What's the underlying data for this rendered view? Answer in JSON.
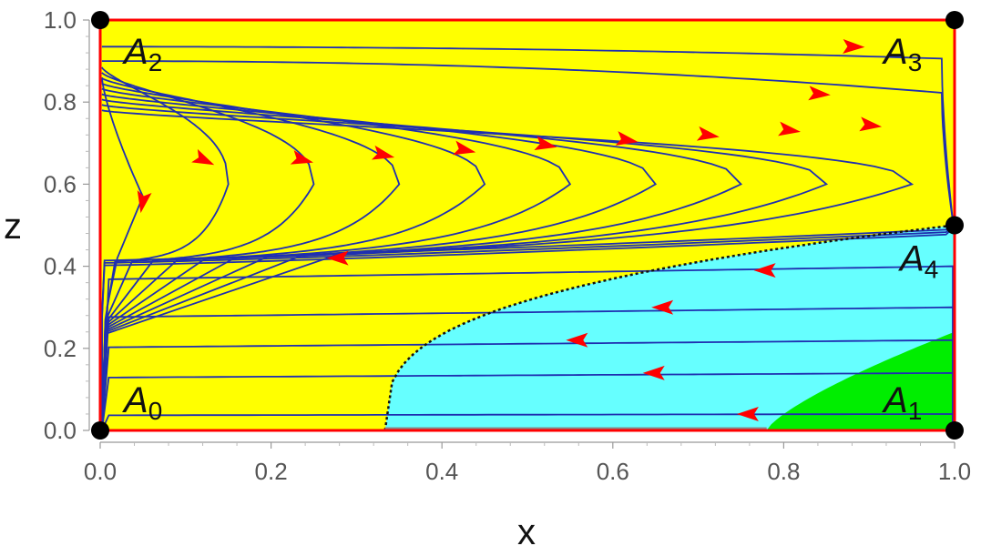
{
  "chart_data": {
    "type": "phase-portrait",
    "xlabel": "x",
    "ylabel": "z",
    "xlim": [
      0,
      1
    ],
    "ylim": [
      0,
      1
    ],
    "x_ticks": [
      "0.0",
      "0.2",
      "0.4",
      "0.6",
      "0.8",
      "1.0"
    ],
    "y_ticks": [
      "0.0",
      "0.2",
      "0.4",
      "0.6",
      "0.8",
      "1.0"
    ],
    "colors": {
      "background": "#ffff00",
      "region_cyan": "#66ffff",
      "region_green": "#00ee00",
      "trajectory": "#1f2fb0",
      "arrow": "#ff0000",
      "border": "#ff0000",
      "separatrix": "#111111",
      "point": "#000000"
    },
    "points": [
      {
        "name": "A",
        "sub": "0",
        "x": 0,
        "z": 0
      },
      {
        "name": "A",
        "sub": "1",
        "x": 1,
        "z": 0
      },
      {
        "name": "A",
        "sub": "2",
        "x": 0,
        "z": 1
      },
      {
        "name": "A",
        "sub": "3",
        "x": 1,
        "z": 1
      },
      {
        "name": "A",
        "sub": "4",
        "x": 1,
        "z": 0.5
      }
    ],
    "upper_turning_points": [
      {
        "x": 0.15,
        "z": 0.6
      },
      {
        "x": 0.25,
        "z": 0.6
      },
      {
        "x": 0.35,
        "z": 0.6
      },
      {
        "x": 0.45,
        "z": 0.6
      },
      {
        "x": 0.55,
        "z": 0.6
      },
      {
        "x": 0.65,
        "z": 0.6
      },
      {
        "x": 0.75,
        "z": 0.6
      },
      {
        "x": 0.85,
        "z": 0.6
      },
      {
        "x": 0.95,
        "z": 0.6
      }
    ],
    "top_trajectories": [
      {
        "z_left": 0.935,
        "z_right": 0.905
      },
      {
        "z_left": 0.9,
        "z_right": 0.82
      }
    ],
    "left_trajectory_end": {
      "x": 0.05,
      "z": 0.57
    },
    "lower_trajectory_levels": [
      0.04,
      0.14,
      0.22,
      0.3,
      0.4
    ]
  }
}
